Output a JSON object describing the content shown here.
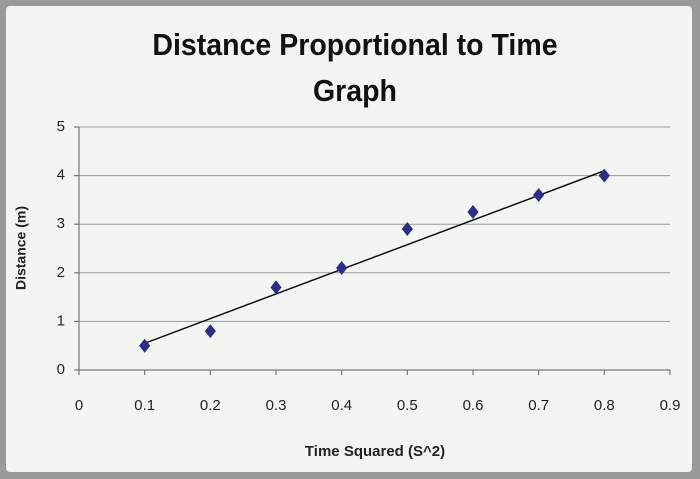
{
  "chart_data": {
    "type": "scatter",
    "title": "Distance Proportional to Time Graph",
    "x_label": "Time Squared (S^2)",
    "y_label": "Distance (m)",
    "series": [
      {
        "color": "#2b2f86",
        "x": [
          0.1,
          0.2,
          0.3,
          0.4,
          0.5,
          0.6,
          0.7,
          0.8
        ],
        "values": [
          0.5,
          0.8,
          1.7,
          2.1,
          2.9,
          3.25,
          3.6,
          4.0
        ]
      }
    ],
    "trendline": {
      "color": "#111111",
      "x": [
        0.1,
        0.8
      ],
      "values": [
        0.55,
        4.1
      ]
    },
    "xlim": [
      0,
      0.9
    ],
    "xticks": [
      0,
      0.1,
      0.2,
      0.3,
      0.4,
      0.5,
      0.6,
      0.7,
      0.8,
      0.9
    ],
    "ylim": [
      0,
      5
    ],
    "yticks": [
      0,
      1,
      2,
      3,
      4,
      5
    ],
    "grid": true
  }
}
